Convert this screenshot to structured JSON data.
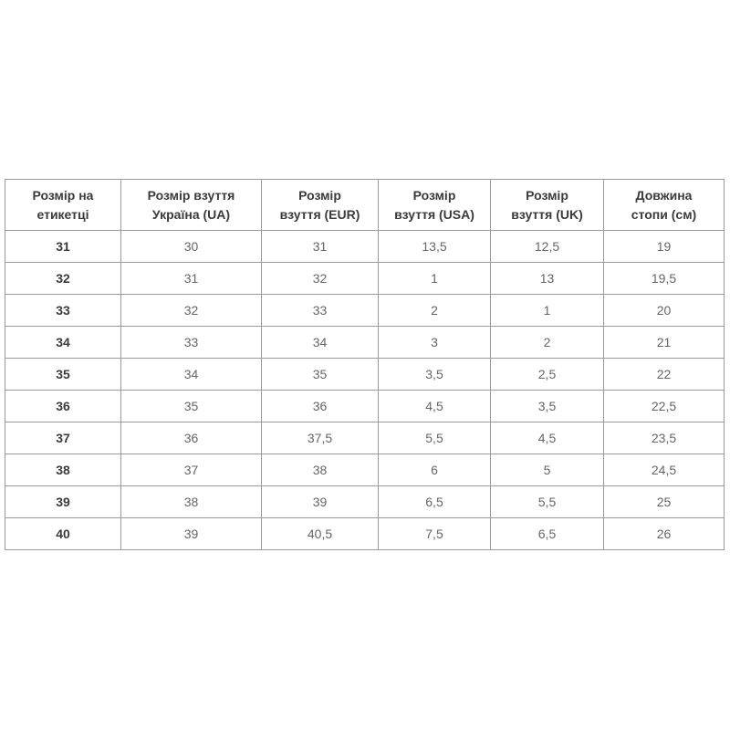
{
  "colors": {
    "page_background": "#ffffff",
    "table_border": "#9a9a9a",
    "header_text": "#3b3b3b",
    "body_text": "#666666",
    "label_column_text": "#3b3b3b"
  },
  "table": {
    "headers": [
      "Розмір на\nетикетці",
      "Розмір взуття\nУкраїна (UA)",
      "Розмір\nвзуття (EUR)",
      "Розмір\nвзуття (USA)",
      "Розмір\nвзуття (UK)",
      "Довжина\nстопи (см)"
    ],
    "rows": [
      [
        "31",
        "30",
        "31",
        "13,5",
        "12,5",
        "19"
      ],
      [
        "32",
        "31",
        "32",
        "1",
        "13",
        "19,5"
      ],
      [
        "33",
        "32",
        "33",
        "2",
        "1",
        "20"
      ],
      [
        "34",
        "33",
        "34",
        "3",
        "2",
        "21"
      ],
      [
        "35",
        "34",
        "35",
        "3,5",
        "2,5",
        "22"
      ],
      [
        "36",
        "35",
        "36",
        "4,5",
        "3,5",
        "22,5"
      ],
      [
        "37",
        "36",
        "37,5",
        "5,5",
        "4,5",
        "23,5"
      ],
      [
        "38",
        "37",
        "38",
        "6",
        "5",
        "24,5"
      ],
      [
        "39",
        "38",
        "39",
        "6,5",
        "5,5",
        "25"
      ],
      [
        "40",
        "39",
        "40,5",
        "7,5",
        "6,5",
        "26"
      ]
    ]
  }
}
